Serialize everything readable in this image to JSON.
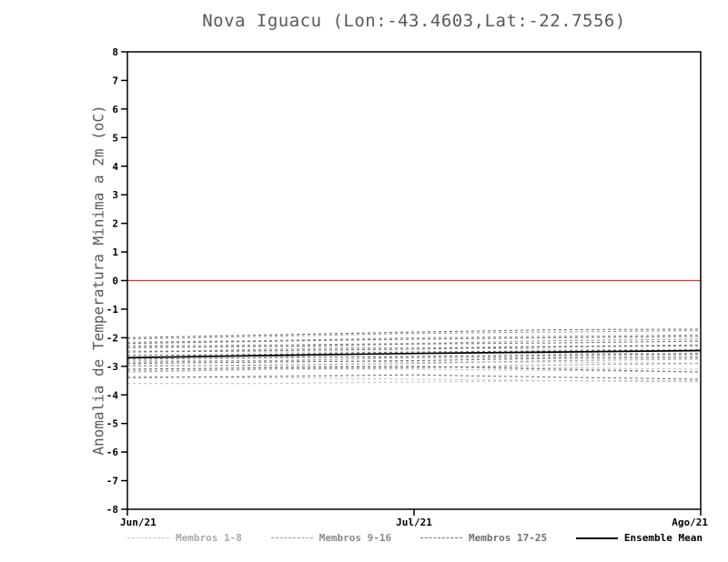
{
  "chart_data": {
    "type": "line",
    "title": "Nova Iguacu (Lon:-43.4603,Lat:-22.7556)",
    "xlabel": "",
    "ylabel": "Anomalia de Temperatura Minima a 2m (oC)",
    "x_ticks": [
      "Jun/21",
      "Jul/21",
      "Ago/21"
    ],
    "y_ticks": [
      -8,
      -7,
      -6,
      -5,
      -4,
      -3,
      -2,
      -1,
      0,
      1,
      2,
      3,
      4,
      5,
      6,
      7,
      8
    ],
    "ylim": [
      -8,
      8
    ],
    "grid": false,
    "legend_position": "bottom",
    "zero_line": {
      "value": 0,
      "color": "#fb2b24"
    },
    "groups": [
      {
        "name": "Membros 1-8",
        "color": "#c4c4c4",
        "dash": "3,3",
        "label_color": "#a8a8a8"
      },
      {
        "name": "Membros 9-16",
        "color": "#9c9c9c",
        "dash": "3,3",
        "label_color": "#8a8a8a"
      },
      {
        "name": "Membros 17-25",
        "color": "#717171",
        "dash": "3,3",
        "label_color": "#6e6e6e"
      },
      {
        "name": "Ensemble Mean",
        "color": "#000000",
        "dash": null,
        "label_color": "#000000"
      }
    ],
    "series": [
      {
        "name": "Membro 1",
        "group": 0,
        "values": [
          -3.6,
          -3.6,
          -3.55,
          -3.5,
          -3.5
        ]
      },
      {
        "name": "Membro 2",
        "group": 0,
        "values": [
          -3.35,
          -3.4,
          -3.45,
          -3.5,
          -3.55
        ]
      },
      {
        "name": "Membro 3",
        "group": 0,
        "values": [
          -3.15,
          -3.1,
          -3.1,
          -3.15,
          -3.2
        ]
      },
      {
        "name": "Membro 4",
        "group": 0,
        "values": [
          -2.95,
          -3.0,
          -3.0,
          -3.05,
          -3.1
        ]
      },
      {
        "name": "Membro 5",
        "group": 0,
        "values": [
          -2.8,
          -2.8,
          -2.85,
          -2.85,
          -2.9
        ]
      },
      {
        "name": "Membro 6",
        "group": 0,
        "values": [
          -2.6,
          -2.65,
          -2.7,
          -2.7,
          -2.7
        ]
      },
      {
        "name": "Membro 7",
        "group": 0,
        "values": [
          -2.45,
          -2.5,
          -2.5,
          -2.55,
          -2.55
        ]
      },
      {
        "name": "Membro 8",
        "group": 0,
        "values": [
          -2.25,
          -2.3,
          -2.35,
          -2.4,
          -2.45
        ]
      },
      {
        "name": "Membro 9",
        "group": 1,
        "values": [
          -2.05,
          -1.95,
          -1.85,
          -1.8,
          -1.75
        ]
      },
      {
        "name": "Membro 10",
        "group": 1,
        "values": [
          -2.15,
          -2.1,
          -2.0,
          -1.95,
          -1.9
        ]
      },
      {
        "name": "Membro 11",
        "group": 1,
        "values": [
          -2.3,
          -2.25,
          -2.2,
          -2.1,
          -2.05
        ]
      },
      {
        "name": "Membro 12",
        "group": 1,
        "values": [
          -2.5,
          -2.4,
          -2.35,
          -2.3,
          -2.25
        ]
      },
      {
        "name": "Membro 13",
        "group": 1,
        "values": [
          -2.7,
          -2.6,
          -2.55,
          -2.5,
          -2.45
        ]
      },
      {
        "name": "Membro 14",
        "group": 1,
        "values": [
          -2.85,
          -2.8,
          -2.7,
          -2.65,
          -2.6
        ]
      },
      {
        "name": "Membro 15",
        "group": 1,
        "values": [
          -3.0,
          -2.95,
          -2.9,
          -2.8,
          -2.75
        ]
      },
      {
        "name": "Membro 16",
        "group": 1,
        "values": [
          -3.2,
          -3.1,
          -3.05,
          -2.95,
          -2.9
        ]
      },
      {
        "name": "Membro 17",
        "group": 2,
        "values": [
          -2.0,
          -1.9,
          -1.8,
          -1.72,
          -1.7
        ]
      },
      {
        "name": "Membro 18",
        "group": 2,
        "values": [
          -2.2,
          -2.12,
          -2.05,
          -2.0,
          -1.95
        ]
      },
      {
        "name": "Membro 19",
        "group": 2,
        "values": [
          -2.35,
          -2.3,
          -2.22,
          -2.18,
          -2.12
        ]
      },
      {
        "name": "Membro 20",
        "group": 2,
        "values": [
          -2.5,
          -2.45,
          -2.4,
          -2.32,
          -2.28
        ]
      },
      {
        "name": "Membro 21",
        "group": 2,
        "values": [
          -2.62,
          -2.58,
          -2.5,
          -2.46,
          -2.42
        ]
      },
      {
        "name": "Membro 22",
        "group": 2,
        "values": [
          -2.75,
          -2.7,
          -2.65,
          -2.6,
          -2.55
        ]
      },
      {
        "name": "Membro 23",
        "group": 2,
        "values": [
          -2.9,
          -2.85,
          -2.8,
          -2.72,
          -2.68
        ]
      },
      {
        "name": "Membro 24",
        "group": 2,
        "values": [
          -3.1,
          -3.05,
          -3.0,
          -3.1,
          -3.2
        ]
      },
      {
        "name": "Membro 25",
        "group": 2,
        "values": [
          -3.4,
          -3.35,
          -3.3,
          -3.38,
          -3.45
        ]
      },
      {
        "name": "Ensemble Mean",
        "group": 3,
        "values": [
          -2.7,
          -2.62,
          -2.55,
          -2.5,
          -2.45
        ]
      }
    ]
  }
}
